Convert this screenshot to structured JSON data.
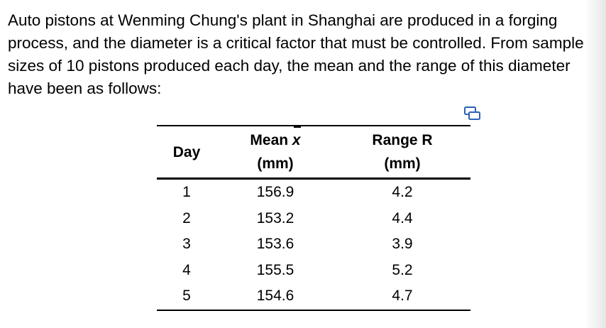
{
  "problem": {
    "text": "Auto pistons at Wenming Chung's plant in Shanghai are produced in a forging process, and the diameter is a critical factor that must be controlled. From sample sizes of 10 pistons produced each day, the mean and the range of this diameter have been as follows:"
  },
  "table": {
    "headers": {
      "day": "Day",
      "mean": "Mean",
      "mean_symbol": "x",
      "mean_unit": "(mm)",
      "range": "Range R",
      "range_unit": "(mm)"
    },
    "rows": [
      {
        "day": "1",
        "mean": "156.9",
        "range": "4.2"
      },
      {
        "day": "2",
        "mean": "153.2",
        "range": "4.4"
      },
      {
        "day": "3",
        "mean": "153.6",
        "range": "3.9"
      },
      {
        "day": "4",
        "mean": "155.5",
        "range": "5.2"
      },
      {
        "day": "5",
        "mean": "154.6",
        "range": "4.7"
      }
    ]
  },
  "icons": {
    "copy": "copy-icon"
  },
  "colors": {
    "icon_accent": "#2d63b5"
  }
}
